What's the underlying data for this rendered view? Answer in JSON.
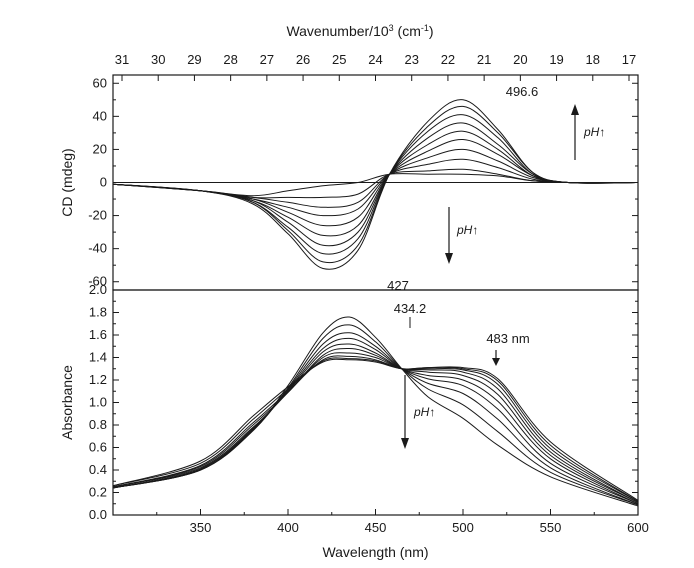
{
  "chart_data": [
    {
      "panel": "top",
      "type": "line",
      "xlabel": "Wavelength (nm)",
      "x2label_main": "Wavenumber/10",
      "x2label_sup": "3",
      "x2label_unit": " (cm",
      "x2label_unit_sup": "-1",
      "x2label_close": ")",
      "x2_ticks": [
        "31",
        "30",
        "29",
        "28",
        "27",
        "26",
        "25",
        "24",
        "23",
        "22",
        "21",
        "20",
        "19",
        "18",
        "17"
      ],
      "ylabel": "CD (mdeg)",
      "xlim": [
        300,
        600
      ],
      "ylim": [
        -65,
        65
      ],
      "y_ticks": [
        "-60",
        "-40",
        "-20",
        "0",
        "20",
        "40",
        "60"
      ],
      "series": [
        {
          "values": [
            [
              300,
              -1
            ],
            [
              350,
              -5
            ],
            [
              380,
              -8
            ],
            [
              400,
              -5
            ],
            [
              420,
              -2
            ],
            [
              440,
              0
            ],
            [
              458,
              5
            ],
            [
              480,
              5
            ],
            [
              500,
              5
            ],
            [
              520,
              4
            ],
            [
              540,
              1
            ],
            [
              560,
              0
            ],
            [
              600,
              0
            ]
          ]
        },
        {
          "values": [
            [
              300,
              -1
            ],
            [
              350,
              -5
            ],
            [
              380,
              -9
            ],
            [
              400,
              -9
            ],
            [
              420,
              -9
            ],
            [
              440,
              -7
            ],
            [
              458,
              5
            ],
            [
              480,
              7
            ],
            [
              500,
              8
            ],
            [
              520,
              5
            ],
            [
              540,
              1
            ],
            [
              560,
              0
            ],
            [
              600,
              0
            ]
          ]
        },
        {
          "values": [
            [
              300,
              -1
            ],
            [
              350,
              -5
            ],
            [
              380,
              -9
            ],
            [
              400,
              -12
            ],
            [
              420,
              -15
            ],
            [
              440,
              -12
            ],
            [
              458,
              5
            ],
            [
              480,
              11
            ],
            [
              500,
              14
            ],
            [
              520,
              9
            ],
            [
              540,
              2
            ],
            [
              560,
              0
            ],
            [
              600,
              0
            ]
          ]
        },
        {
          "values": [
            [
              300,
              -1
            ],
            [
              350,
              -5
            ],
            [
              380,
              -10
            ],
            [
              400,
              -15
            ],
            [
              420,
              -20
            ],
            [
              440,
              -16
            ],
            [
              458,
              5
            ],
            [
              480,
              15
            ],
            [
              500,
              20
            ],
            [
              520,
              13
            ],
            [
              540,
              3
            ],
            [
              560,
              0
            ],
            [
              600,
              0
            ]
          ]
        },
        {
          "values": [
            [
              300,
              -1
            ],
            [
              350,
              -5
            ],
            [
              380,
              -10
            ],
            [
              400,
              -18
            ],
            [
              420,
              -26
            ],
            [
              440,
              -21
            ],
            [
              458,
              5
            ],
            [
              480,
              19
            ],
            [
              500,
              26
            ],
            [
              520,
              17
            ],
            [
              540,
              4
            ],
            [
              560,
              0
            ],
            [
              600,
              0
            ]
          ]
        },
        {
          "values": [
            [
              300,
              -1
            ],
            [
              350,
              -5
            ],
            [
              380,
              -11
            ],
            [
              400,
              -21
            ],
            [
              420,
              -32
            ],
            [
              440,
              -26
            ],
            [
              458,
              5
            ],
            [
              480,
              23
            ],
            [
              500,
              31
            ],
            [
              520,
              20
            ],
            [
              540,
              4
            ],
            [
              560,
              0
            ],
            [
              600,
              0
            ]
          ]
        },
        {
          "values": [
            [
              300,
              -1
            ],
            [
              350,
              -5
            ],
            [
              380,
              -11
            ],
            [
              400,
              -24
            ],
            [
              420,
              -38
            ],
            [
              440,
              -30
            ],
            [
              458,
              5
            ],
            [
              480,
              27
            ],
            [
              500,
              36
            ],
            [
              520,
              23
            ],
            [
              540,
              5
            ],
            [
              560,
              0
            ],
            [
              600,
              0
            ]
          ]
        },
        {
          "values": [
            [
              300,
              -1
            ],
            [
              350,
              -5
            ],
            [
              380,
              -12
            ],
            [
              400,
              -27
            ],
            [
              420,
              -43
            ],
            [
              440,
              -34
            ],
            [
              458,
              5
            ],
            [
              480,
              31
            ],
            [
              500,
              41
            ],
            [
              520,
              27
            ],
            [
              540,
              5
            ],
            [
              560,
              0
            ],
            [
              600,
              0
            ]
          ]
        },
        {
          "values": [
            [
              300,
              -1
            ],
            [
              350,
              -5
            ],
            [
              380,
              -12
            ],
            [
              400,
              -29
            ],
            [
              420,
              -48
            ],
            [
              440,
              -38
            ],
            [
              458,
              5
            ],
            [
              480,
              34
            ],
            [
              500,
              46
            ],
            [
              520,
              30
            ],
            [
              540,
              6
            ],
            [
              560,
              0
            ],
            [
              600,
              0
            ]
          ]
        },
        {
          "values": [
            [
              300,
              -1
            ],
            [
              350,
              -5
            ],
            [
              380,
              -13
            ],
            [
              400,
              -31
            ],
            [
              420,
              -52
            ],
            [
              440,
              -41
            ],
            [
              458,
              5
            ],
            [
              480,
              37
            ],
            [
              500,
              50
            ],
            [
              520,
              32
            ],
            [
              540,
              6
            ],
            [
              560,
              0
            ],
            [
              600,
              0
            ]
          ]
        }
      ],
      "annotations": {
        "peak_label": "496.6",
        "trough_label": "427",
        "ph_up": "pH",
        "ph_down": "pH",
        "ph_arrow": "↑"
      }
    },
    {
      "panel": "bottom",
      "type": "line",
      "xlabel": "Wavelength (nm)",
      "ylabel": "Absorbance",
      "xlim": [
        300,
        600
      ],
      "ylim": [
        0.0,
        2.0
      ],
      "x_ticks": [
        "350",
        "400",
        "450",
        "500",
        "550",
        "600"
      ],
      "y_ticks": [
        "0.0",
        "0.2",
        "0.4",
        "0.6",
        "0.8",
        "1.0",
        "1.2",
        "1.4",
        "1.6",
        "1.8",
        "2.0"
      ],
      "series": [
        {
          "values": [
            [
              300,
              0.24
            ],
            [
              350,
              0.4
            ],
            [
              380,
              0.75
            ],
            [
              400,
              1.15
            ],
            [
              420,
              1.62
            ],
            [
              435,
              1.76
            ],
            [
              450,
              1.58
            ],
            [
              465,
              1.3
            ],
            [
              480,
              1.05
            ],
            [
              500,
              0.86
            ],
            [
              520,
              0.62
            ],
            [
              550,
              0.34
            ],
            [
              600,
              0.08
            ]
          ]
        },
        {
          "values": [
            [
              300,
              0.24
            ],
            [
              350,
              0.4
            ],
            [
              380,
              0.75
            ],
            [
              400,
              1.13
            ],
            [
              420,
              1.57
            ],
            [
              435,
              1.69
            ],
            [
              450,
              1.54
            ],
            [
              465,
              1.3
            ],
            [
              480,
              1.12
            ],
            [
              500,
              0.98
            ],
            [
              520,
              0.74
            ],
            [
              550,
              0.38
            ],
            [
              600,
              0.09
            ]
          ]
        },
        {
          "values": [
            [
              300,
              0.24
            ],
            [
              350,
              0.4
            ],
            [
              380,
              0.76
            ],
            [
              400,
              1.12
            ],
            [
              420,
              1.52
            ],
            [
              435,
              1.62
            ],
            [
              450,
              1.5
            ],
            [
              465,
              1.3
            ],
            [
              480,
              1.17
            ],
            [
              500,
              1.08
            ],
            [
              520,
              0.85
            ],
            [
              550,
              0.42
            ],
            [
              600,
              0.09
            ]
          ]
        },
        {
          "values": [
            [
              300,
              0.24
            ],
            [
              350,
              0.41
            ],
            [
              380,
              0.76
            ],
            [
              400,
              1.11
            ],
            [
              420,
              1.48
            ],
            [
              435,
              1.57
            ],
            [
              450,
              1.47
            ],
            [
              465,
              1.3
            ],
            [
              480,
              1.21
            ],
            [
              500,
              1.15
            ],
            [
              520,
              0.94
            ],
            [
              550,
              0.46
            ],
            [
              600,
              0.1
            ]
          ]
        },
        {
          "values": [
            [
              300,
              0.24
            ],
            [
              350,
              0.41
            ],
            [
              380,
              0.77
            ],
            [
              400,
              1.1
            ],
            [
              420,
              1.45
            ],
            [
              435,
              1.52
            ],
            [
              450,
              1.44
            ],
            [
              465,
              1.3
            ],
            [
              480,
              1.24
            ],
            [
              500,
              1.2
            ],
            [
              520,
              1.01
            ],
            [
              550,
              0.5
            ],
            [
              600,
              0.1
            ]
          ]
        },
        {
          "values": [
            [
              300,
              0.25
            ],
            [
              350,
              0.42
            ],
            [
              380,
              0.78
            ],
            [
              400,
              1.09
            ],
            [
              420,
              1.42
            ],
            [
              435,
              1.48
            ],
            [
              450,
              1.42
            ],
            [
              465,
              1.3
            ],
            [
              480,
              1.27
            ],
            [
              500,
              1.24
            ],
            [
              520,
              1.07
            ],
            [
              550,
              0.53
            ],
            [
              600,
              0.11
            ]
          ]
        },
        {
          "values": [
            [
              300,
              0.25
            ],
            [
              350,
              0.43
            ],
            [
              380,
              0.8
            ],
            [
              400,
              1.09
            ],
            [
              420,
              1.4
            ],
            [
              435,
              1.44
            ],
            [
              450,
              1.4
            ],
            [
              465,
              1.3
            ],
            [
              480,
              1.29
            ],
            [
              500,
              1.27
            ],
            [
              520,
              1.12
            ],
            [
              550,
              0.56
            ],
            [
              600,
              0.11
            ]
          ]
        },
        {
          "values": [
            [
              300,
              0.25
            ],
            [
              350,
              0.44
            ],
            [
              380,
              0.82
            ],
            [
              400,
              1.1
            ],
            [
              420,
              1.38
            ],
            [
              435,
              1.41
            ],
            [
              450,
              1.38
            ],
            [
              465,
              1.3
            ],
            [
              480,
              1.3
            ],
            [
              500,
              1.29
            ],
            [
              520,
              1.16
            ],
            [
              550,
              0.59
            ],
            [
              600,
              0.12
            ]
          ]
        },
        {
          "values": [
            [
              300,
              0.26
            ],
            [
              350,
              0.46
            ],
            [
              380,
              0.85
            ],
            [
              400,
              1.12
            ],
            [
              420,
              1.37
            ],
            [
              435,
              1.39
            ],
            [
              450,
              1.37
            ],
            [
              465,
              1.3
            ],
            [
              480,
              1.31
            ],
            [
              500,
              1.3
            ],
            [
              520,
              1.19
            ],
            [
              550,
              0.62
            ],
            [
              600,
              0.12
            ]
          ]
        },
        {
          "values": [
            [
              300,
              0.26
            ],
            [
              350,
              0.48
            ],
            [
              380,
              0.88
            ],
            [
              400,
              1.14
            ],
            [
              420,
              1.36
            ],
            [
              435,
              1.38
            ],
            [
              450,
              1.36
            ],
            [
              465,
              1.3
            ],
            [
              480,
              1.31
            ],
            [
              500,
              1.31
            ],
            [
              520,
              1.21
            ],
            [
              550,
              0.65
            ],
            [
              600,
              0.13
            ]
          ]
        }
      ],
      "annotations": {
        "peak_label": "434.2",
        "shoulder_label": "483 nm",
        "ph_down": "pH",
        "ph_arrow": "↑"
      }
    }
  ]
}
